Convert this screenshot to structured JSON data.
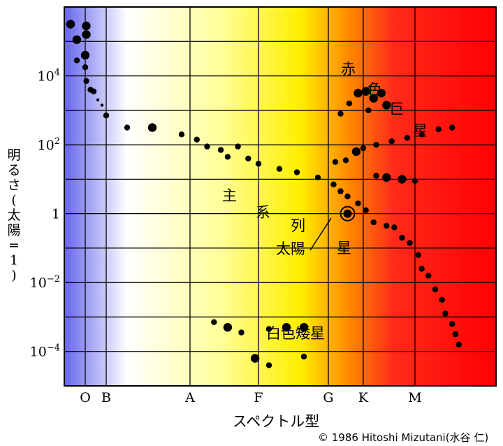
{
  "chart_data": {
    "type": "scatter",
    "title": "",
    "xlabel": "スペクトル型",
    "ylabel": "明るさ(太陽=1)",
    "x_ticks": [
      "O",
      "B",
      "A",
      "F",
      "G",
      "K",
      "M"
    ],
    "y_ticks": [
      {
        "exp": 4,
        "label": "10",
        "sup": "4"
      },
      {
        "exp": 2,
        "label": "10",
        "sup": "2"
      },
      {
        "exp": 0,
        "label": "1",
        "sup": ""
      },
      {
        "exp": -2,
        "label": "10",
        "sup": "−2"
      },
      {
        "exp": -4,
        "label": "10",
        "sup": "−4"
      }
    ],
    "ylim_log10": [
      -5.0,
      6.0
    ],
    "xlim_spectral": [
      -0.5,
      7.2
    ],
    "background_gradient": [
      {
        "spectral": -0.5,
        "color": "#6666ee"
      },
      {
        "spectral": 1.25,
        "color": "#ffffff"
      },
      {
        "spectral": 2.45,
        "color": "#ffff99"
      },
      {
        "spectral": 3.6,
        "color": "#ffee00"
      },
      {
        "spectral": 4.6,
        "color": "#ff8800"
      },
      {
        "spectral": 5.6,
        "color": "#ff2a1a"
      },
      {
        "spectral": 7.2,
        "color": "#ff0000"
      }
    ],
    "series": [
      {
        "name": "主系列星",
        "points": [
          {
            "s": -0.35,
            "logL": 5.5,
            "size": 3
          },
          {
            "s": 0.05,
            "logL": 5.45,
            "size": 3
          },
          {
            "s": 0.05,
            "logL": 5.2,
            "size": 3
          },
          {
            "s": -0.2,
            "logL": 5.05,
            "size": 3
          },
          {
            "s": 0.0,
            "logL": 4.6,
            "size": 3
          },
          {
            "s": -0.2,
            "logL": 4.45,
            "size": 2
          },
          {
            "s": 0.0,
            "logL": 4.25,
            "size": 2
          },
          {
            "s": 0.05,
            "logL": 3.85,
            "size": 2
          },
          {
            "s": 0.25,
            "logL": 3.6,
            "size": 2
          },
          {
            "s": 0.4,
            "logL": 3.55,
            "size": 2
          },
          {
            "s": 0.6,
            "logL": 3.3,
            "size": 1
          },
          {
            "s": 0.8,
            "logL": 3.15,
            "size": 1
          },
          {
            "s": 1.0,
            "logL": 2.85,
            "size": 2
          },
          {
            "s": 1.25,
            "logL": 2.5,
            "size": 2
          },
          {
            "s": 1.55,
            "logL": 2.5,
            "size": 3
          },
          {
            "s": 1.9,
            "logL": 2.3,
            "size": 2
          },
          {
            "s": 2.1,
            "logL": 2.15,
            "size": 2
          },
          {
            "s": 2.25,
            "logL": 1.95,
            "size": 2
          },
          {
            "s": 2.45,
            "logL": 1.85,
            "size": 2
          },
          {
            "s": 2.7,
            "logL": 1.95,
            "size": 2
          },
          {
            "s": 2.55,
            "logL": 1.65,
            "size": 2
          },
          {
            "s": 2.85,
            "logL": 1.6,
            "size": 2
          },
          {
            "s": 3.0,
            "logL": 1.45,
            "size": 2
          },
          {
            "s": 3.3,
            "logL": 1.3,
            "size": 2
          },
          {
            "s": 3.55,
            "logL": 1.2,
            "size": 2
          },
          {
            "s": 3.85,
            "logL": 1.05,
            "size": 2
          },
          {
            "s": 4.15,
            "logL": 0.85,
            "size": 2
          },
          {
            "s": 4.35,
            "logL": 0.65,
            "size": 2
          },
          {
            "s": 4.55,
            "logL": 0.5,
            "size": 2
          },
          {
            "s": 4.85,
            "logL": 0.3,
            "size": 2
          },
          {
            "s": 5.05,
            "logL": 0.1,
            "size": 2
          },
          {
            "s": 5.2,
            "logL": -0.25,
            "size": 2
          },
          {
            "s": 5.45,
            "logL": -0.35,
            "size": 2
          },
          {
            "s": 5.6,
            "logL": -0.4,
            "size": 2
          },
          {
            "s": 5.75,
            "logL": -0.7,
            "size": 2
          },
          {
            "s": 5.9,
            "logL": -0.85,
            "size": 2
          },
          {
            "s": 6.05,
            "logL": -1.2,
            "size": 2
          },
          {
            "s": 6.1,
            "logL": -1.6,
            "size": 2
          },
          {
            "s": 6.2,
            "logL": -1.8,
            "size": 2
          },
          {
            "s": 6.3,
            "logL": -2.2,
            "size": 2
          },
          {
            "s": 6.4,
            "logL": -2.5,
            "size": 2
          },
          {
            "s": 6.45,
            "logL": -2.9,
            "size": 2
          },
          {
            "s": 6.55,
            "logL": -3.2,
            "size": 2
          },
          {
            "s": 6.6,
            "logL": -3.5,
            "size": 2
          },
          {
            "s": 6.65,
            "logL": -3.8,
            "size": 2
          }
        ]
      },
      {
        "name": "赤色巨星",
        "points": [
          {
            "s": 4.35,
            "logL": 2.9,
            "size": 2
          },
          {
            "s": 4.6,
            "logL": 3.2,
            "size": 2
          },
          {
            "s": 4.85,
            "logL": 3.5,
            "size": 3
          },
          {
            "s": 5.05,
            "logL": 3.55,
            "size": 3
          },
          {
            "s": 5.2,
            "logL": 3.35,
            "size": 3
          },
          {
            "s": 5.35,
            "logL": 3.5,
            "size": 3
          },
          {
            "s": 5.45,
            "logL": 3.15,
            "size": 3
          },
          {
            "s": 5.1,
            "logL": 3.0,
            "size": 2
          },
          {
            "s": 4.2,
            "logL": 1.5,
            "size": 2
          },
          {
            "s": 4.5,
            "logL": 1.55,
            "size": 2
          },
          {
            "s": 4.8,
            "logL": 1.8,
            "size": 3
          },
          {
            "s": 5.0,
            "logL": 1.9,
            "size": 2
          },
          {
            "s": 5.25,
            "logL": 2.0,
            "size": 2
          },
          {
            "s": 5.55,
            "logL": 2.1,
            "size": 2
          },
          {
            "s": 5.85,
            "logL": 2.2,
            "size": 2
          },
          {
            "s": 6.1,
            "logL": 2.3,
            "size": 2
          },
          {
            "s": 6.35,
            "logL": 2.45,
            "size": 2
          },
          {
            "s": 6.55,
            "logL": 2.5,
            "size": 2
          },
          {
            "s": 5.25,
            "logL": 1.1,
            "size": 2
          },
          {
            "s": 5.45,
            "logL": 1.05,
            "size": 3
          },
          {
            "s": 5.75,
            "logL": 1.0,
            "size": 3
          },
          {
            "s": 6.0,
            "logL": 0.95,
            "size": 2
          }
        ]
      },
      {
        "name": "白色矮星",
        "points": [
          {
            "s": 2.35,
            "logL": -3.15,
            "size": 2
          },
          {
            "s": 2.55,
            "logL": -3.3,
            "size": 3
          },
          {
            "s": 2.75,
            "logL": -3.45,
            "size": 2
          },
          {
            "s": 3.15,
            "logL": -3.35,
            "size": 2
          },
          {
            "s": 3.4,
            "logL": -3.3,
            "size": 3
          },
          {
            "s": 3.65,
            "logL": -3.3,
            "size": 3
          },
          {
            "s": 2.95,
            "logL": -4.2,
            "size": 3
          },
          {
            "s": 3.15,
            "logL": -4.4,
            "size": 2
          },
          {
            "s": 3.65,
            "logL": -4.15,
            "size": 2
          }
        ]
      }
    ],
    "sun": {
      "s": 4.55,
      "logL": 0.0
    },
    "annotations": {
      "main_sequence": [
        "主",
        "系",
        "列",
        "星"
      ],
      "giants": [
        "赤",
        "色",
        "巨",
        "星"
      ],
      "white_dwarfs": "白色矮星",
      "sun_label": "太陽"
    },
    "ylabel_vertical": [
      "明",
      "る",
      "さ",
      "(",
      "太",
      "陽",
      "=",
      "1",
      ")"
    ],
    "credit": "© 1986 Hitoshi Mizutani(水谷 仁)"
  }
}
